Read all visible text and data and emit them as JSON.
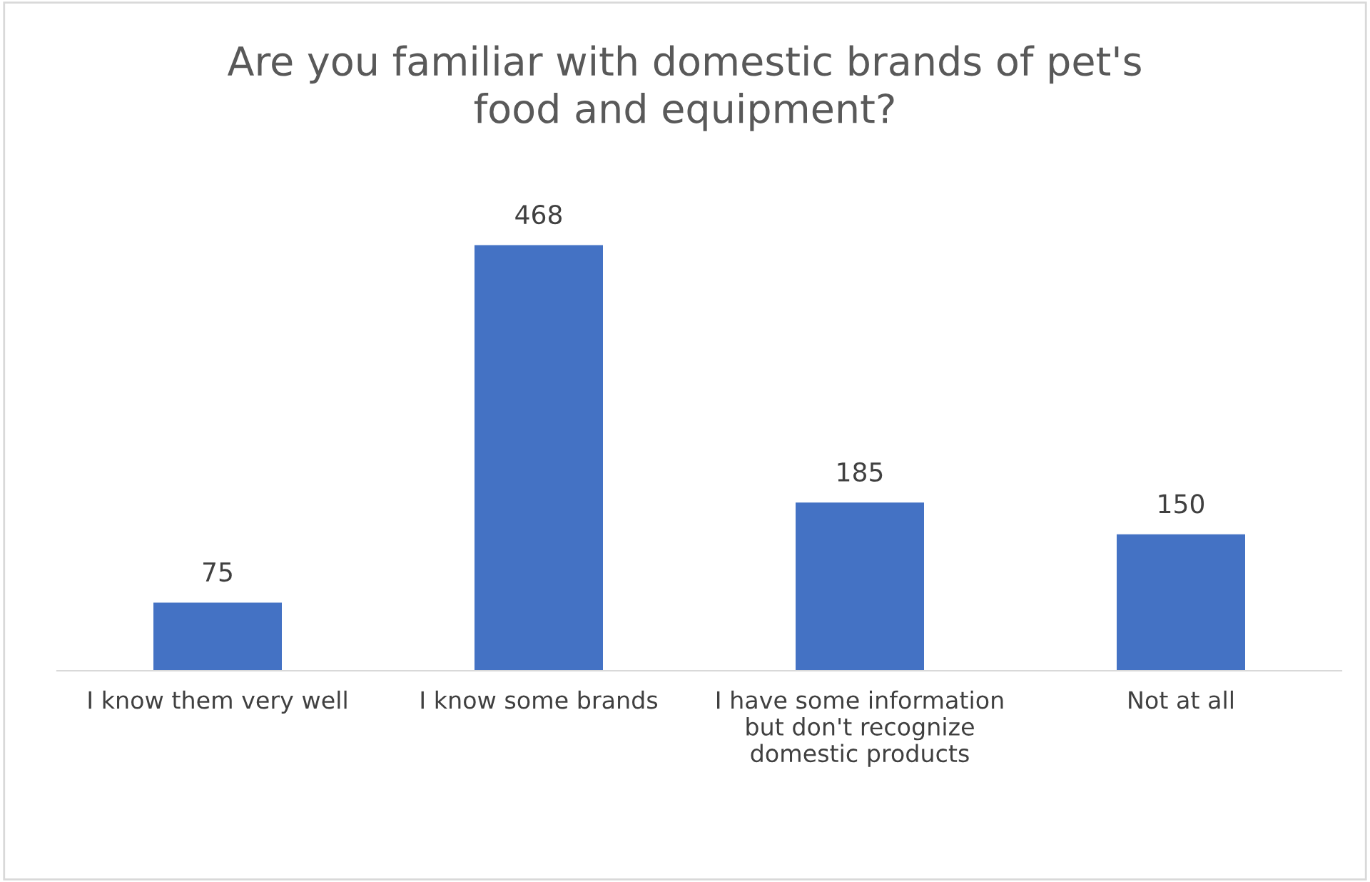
{
  "chart_data": {
    "type": "bar",
    "title": "Are you familiar with domestic brands of pet's food and equipment?",
    "categories": [
      "I know them very well",
      "I know some brands",
      "I have some information but don't recognize domestic products",
      "Not at all"
    ],
    "values": [
      75,
      468,
      185,
      150
    ],
    "color": "#4472c4",
    "data_labels": true,
    "grid": false,
    "legend": false
  }
}
